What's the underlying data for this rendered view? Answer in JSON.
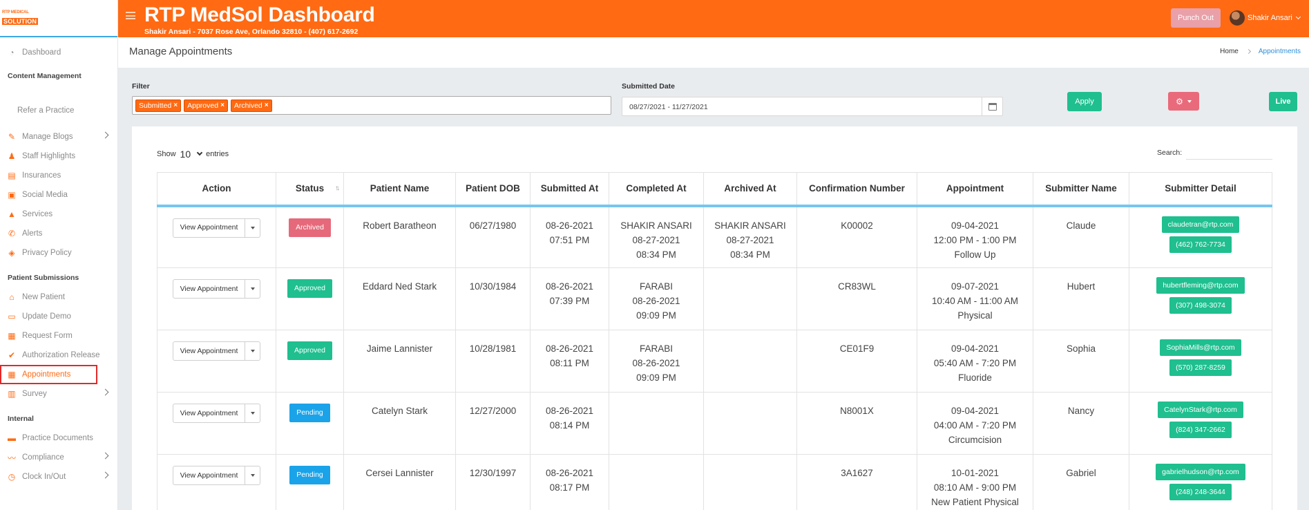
{
  "logo": {
    "line1": "RTP MEDICAL",
    "line2": "SOLUTION"
  },
  "header": {
    "title": "RTP MedSol Dashboard",
    "subtitle": "Shakir Ansari - 7037 Rose Ave, Orlando 32810 - (407) 617-2692",
    "punch_label": "Punch Out",
    "user_name": "Shakir Ansari"
  },
  "sidebar": {
    "dashboard": "Dashboard",
    "section_content": "Content Management",
    "refer": "Refer a Practice",
    "content_items": [
      {
        "label": "Manage Blogs",
        "icon": "blog-icon",
        "glyph": "✎",
        "sub": true
      },
      {
        "label": "Staff Highlights",
        "icon": "staff-icon",
        "glyph": "♟",
        "sub": false
      },
      {
        "label": "Insurances",
        "icon": "insurance-icon",
        "glyph": "▤",
        "sub": false
      },
      {
        "label": "Social Media",
        "icon": "social-icon",
        "glyph": "▣",
        "sub": false
      },
      {
        "label": "Services",
        "icon": "services-icon",
        "glyph": "▲",
        "sub": false
      },
      {
        "label": "Alerts",
        "icon": "alerts-icon",
        "glyph": "✆",
        "sub": false
      },
      {
        "label": "Privacy Policy",
        "icon": "shield-icon",
        "glyph": "◈",
        "sub": false
      }
    ],
    "section_patient": "Patient Submissions",
    "patient_items": [
      {
        "label": "New Patient",
        "icon": "home-icon",
        "glyph": "⌂"
      },
      {
        "label": "Update Demo",
        "icon": "id-card-icon",
        "glyph": "▭"
      },
      {
        "label": "Request Form",
        "icon": "form-icon",
        "glyph": "▦"
      },
      {
        "label": "Authorization Release",
        "icon": "check-doc-icon",
        "glyph": "✔"
      },
      {
        "label": "Appointments",
        "icon": "calendar-icon",
        "glyph": "▦"
      }
    ],
    "survey": "Survey",
    "section_internal": "Internal",
    "internal_items": [
      {
        "label": "Practice Documents",
        "icon": "documents-icon",
        "glyph": "▬",
        "sub": false
      },
      {
        "label": "Compliance",
        "icon": "compliance-icon",
        "glyph": "〰",
        "sub": true
      },
      {
        "label": "Clock In/Out",
        "icon": "clock-icon",
        "glyph": "◷",
        "sub": true
      }
    ]
  },
  "page": {
    "title": "Manage Appointments",
    "breadcrumb_home": "Home",
    "breadcrumb_current": "Appointments"
  },
  "filter": {
    "label": "Filter",
    "tags": [
      "Submitted",
      "Approved",
      "Archived"
    ],
    "date_label": "Submitted Date",
    "date_value": "08/27/2021 - 11/27/2021",
    "apply_label": "Apply",
    "live_label": "Live"
  },
  "table": {
    "show_prefix": "Show",
    "show_value": "10",
    "show_suffix": "entries",
    "search_label": "Search:",
    "view_label": "View Appointment",
    "columns": [
      "Action",
      "Status",
      "Patient Name",
      "Patient DOB",
      "Submitted At",
      "Completed At",
      "Archived At",
      "Confirmation Number",
      "Appointment",
      "Submitter Name",
      "Submitter Detail"
    ],
    "rows": [
      {
        "status": "Archived",
        "status_class": "b-archived",
        "patient": "Robert Baratheon",
        "dob": "06/27/1980",
        "submitted": [
          "08-26-2021",
          "07:51 PM"
        ],
        "completed": [
          "SHAKIR ANSARI",
          "08-27-2021",
          "08:34 PM"
        ],
        "archived": [
          "SHAKIR ANSARI",
          "08-27-2021",
          "08:34 PM"
        ],
        "confirmation": "K00002",
        "appointment": [
          "09-04-2021",
          "12:00 PM - 1:00 PM",
          "Follow Up"
        ],
        "submitter": "Claude",
        "email": "claudetran@rtp.com",
        "phone": "(462) 762-7734"
      },
      {
        "status": "Approved",
        "status_class": "b-approved",
        "patient": "Eddard Ned Stark",
        "dob": "10/30/1984",
        "submitted": [
          "08-26-2021",
          "07:39 PM"
        ],
        "completed": [
          "FARABI",
          "08-26-2021",
          "09:09 PM"
        ],
        "archived": [],
        "confirmation": "CR83WL",
        "appointment": [
          "09-07-2021",
          "10:40 AM - 11:00 AM",
          "Physical"
        ],
        "submitter": "Hubert",
        "email": "hubertfleming@rtp.com",
        "phone": "(307) 498-3074"
      },
      {
        "status": "Approved",
        "status_class": "b-approved",
        "patient": "Jaime Lannister",
        "dob": "10/28/1981",
        "submitted": [
          "08-26-2021",
          "08:11 PM"
        ],
        "completed": [
          "FARABI",
          "08-26-2021",
          "09:09 PM"
        ],
        "archived": [],
        "confirmation": "CE01F9",
        "appointment": [
          "09-04-2021",
          "05:40 AM - 7:20 PM",
          "Fluoride"
        ],
        "submitter": "Sophia",
        "email": "SophiaMills@rtp.com",
        "phone": "(570) 287-8259"
      },
      {
        "status": "Pending",
        "status_class": "b-pending",
        "patient": "Catelyn Stark",
        "dob": "12/27/2000",
        "submitted": [
          "08-26-2021",
          "08:14 PM"
        ],
        "completed": [],
        "archived": [],
        "confirmation": "N8001X",
        "appointment": [
          "09-04-2021",
          "04:00 AM - 7:20 PM",
          "Circumcision"
        ],
        "submitter": "Nancy",
        "email": "CatelynStark@rtp.com",
        "phone": "(824) 347-2662"
      },
      {
        "status": "Pending",
        "status_class": "b-pending",
        "patient": "Cersei Lannister",
        "dob": "12/30/1997",
        "submitted": [
          "08-26-2021",
          "08:17 PM"
        ],
        "completed": [],
        "archived": [],
        "confirmation": "3A1627",
        "appointment": [
          "10-01-2021",
          "08:10 AM - 9:00 PM",
          "New Patient Physical"
        ],
        "submitter": "Gabriel",
        "email": "gabrielhudson@rtp.com",
        "phone": "(248) 248-3644"
      }
    ]
  }
}
